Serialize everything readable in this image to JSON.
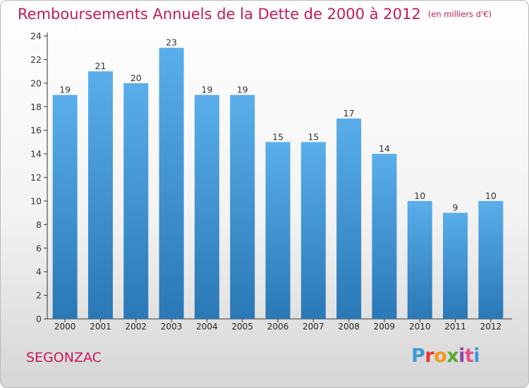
{
  "header": {
    "title": "Remboursements Annuels de la Dette de 2000 à 2012",
    "unit": "(en milliers d'€)"
  },
  "footer": {
    "place": "SEGONZAC",
    "logo_letters": [
      "P",
      "r",
      "o",
      "x",
      "i",
      "t",
      "i"
    ],
    "logo_colors": [
      "#3a9ad9",
      "#e8362d",
      "#f39a1e",
      "#5aaa2e",
      "#8e44ad",
      "#e84c8b",
      "#3a9ad9"
    ]
  },
  "colors": {
    "bar_top": "#5aaeea",
    "bar_bottom": "#2a78b6",
    "axis": "#333333",
    "grid": "#cccccc",
    "title": "#c4195c"
  },
  "chart_data": {
    "type": "bar",
    "title": "Remboursements Annuels de la Dette de 2000 à 2012",
    "subtitle": "(en milliers d'€)",
    "xlabel": "",
    "ylabel": "",
    "categories": [
      "2000",
      "2001",
      "2002",
      "2003",
      "2004",
      "2005",
      "2006",
      "2007",
      "2008",
      "2009",
      "2010",
      "2011",
      "2012"
    ],
    "values": [
      19,
      21,
      20,
      23,
      19,
      19,
      15,
      15,
      17,
      14,
      10,
      9,
      10
    ],
    "ylim": [
      0,
      24
    ],
    "yticks": [
      0,
      2,
      4,
      6,
      8,
      10,
      12,
      14,
      16,
      18,
      20,
      22,
      24
    ],
    "grid": false,
    "data_labels": true
  }
}
